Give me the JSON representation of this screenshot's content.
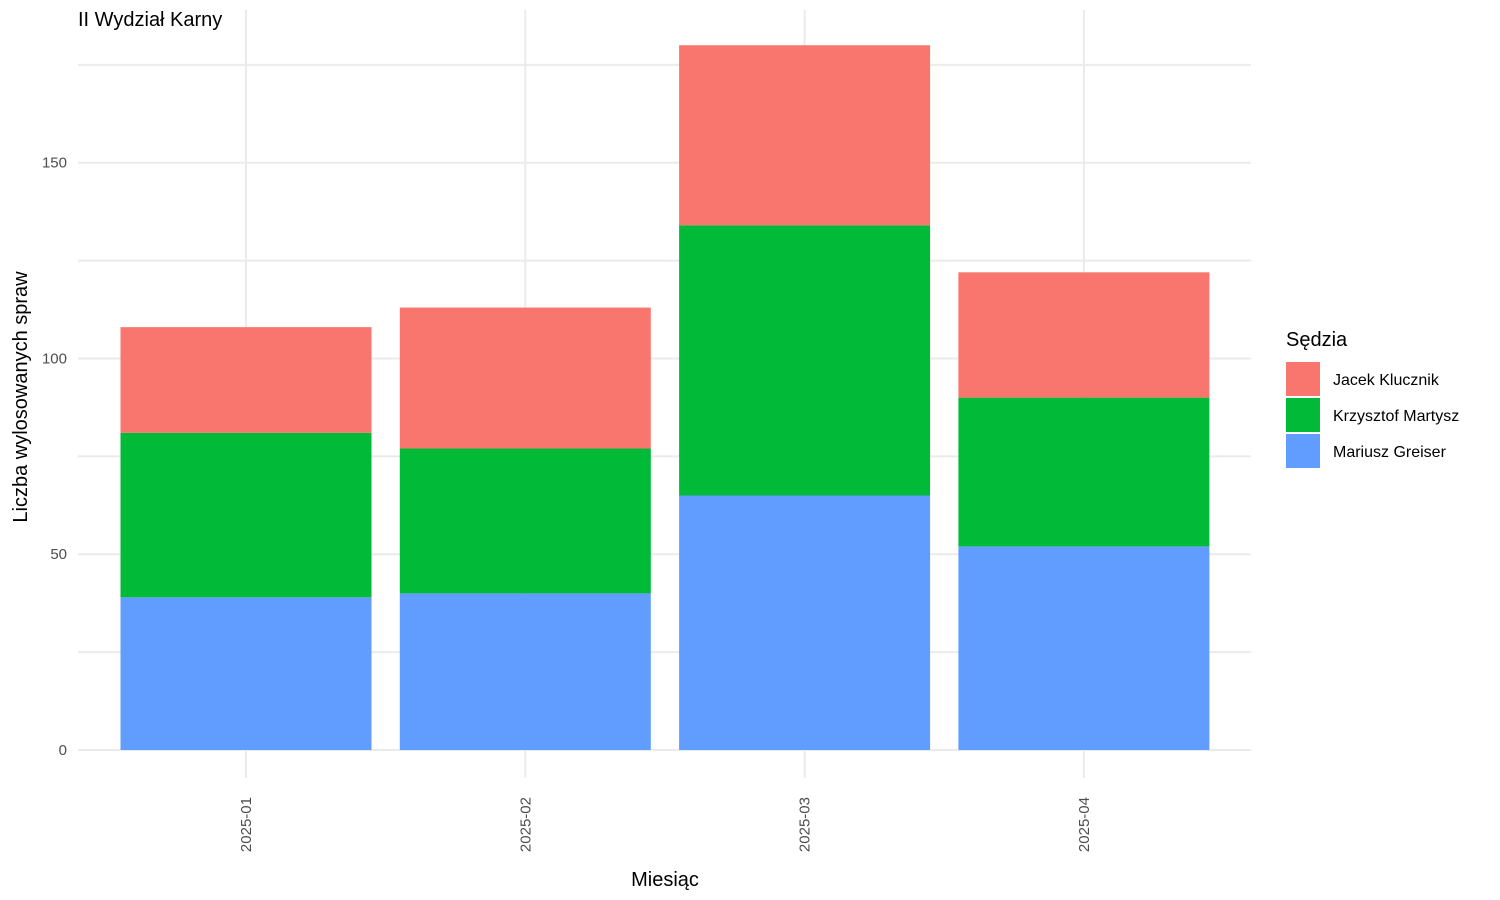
{
  "chart_data": {
    "type": "bar",
    "stacked": true,
    "title": "II Wydział Karny",
    "xlabel": "Miesiąc",
    "ylabel": "Liczba wylosowanych spraw",
    "ylim": [
      0,
      189
    ],
    "yticks": [
      0,
      50,
      100,
      150
    ],
    "grid": true,
    "legend_position": "right",
    "legend_title": "Sędzia",
    "categories": [
      "2025-01",
      "2025-02",
      "2025-03",
      "2025-04"
    ],
    "series": [
      {
        "name": "Mariusz Greiser",
        "color": "#619CFF",
        "values": [
          39,
          40,
          65,
          52
        ]
      },
      {
        "name": "Krzysztof Martysz",
        "color": "#00BA38",
        "values": [
          42,
          37,
          69,
          38
        ]
      },
      {
        "name": "Jacek Klucznik",
        "color": "#F8766D",
        "values": [
          27,
          36,
          46,
          32
        ]
      }
    ],
    "legend_order": [
      "Jacek Klucznik",
      "Krzysztof Martysz",
      "Mariusz Greiser"
    ]
  }
}
